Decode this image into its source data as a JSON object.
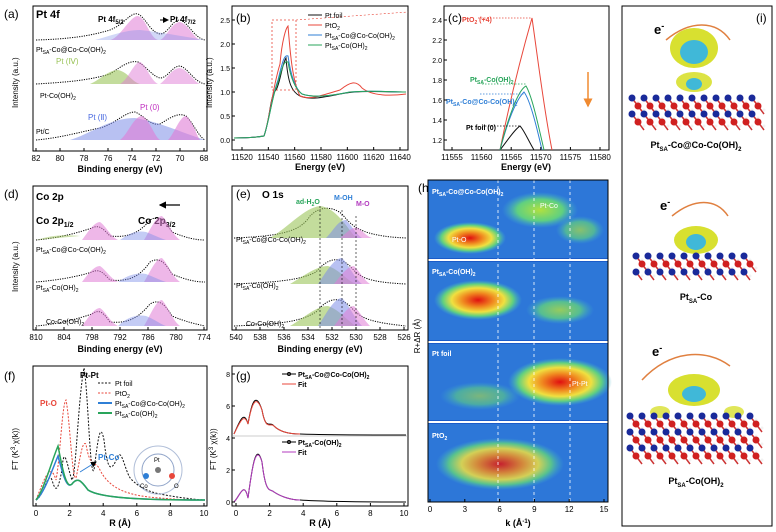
{
  "panels": {
    "a": {
      "letter": "(a)",
      "title": "Pt 4f",
      "peak1": "Pt 4f",
      "peak1_sub": "5/2",
      "peak2": "Pt 4f",
      "peak2_sub": "7/2",
      "curve_top": "Pt",
      "curve_top_sub": "SA",
      "curve_top_rest": "-Co@Co-Co(OH)",
      "curve_top_sub2": "2",
      "curve_mid": "Pt-Co(OH)",
      "curve_mid_sub": "2",
      "curve_bot": "Pt/C",
      "pt4": "Pt (Ⅳ)",
      "pt2": "Pt (Ⅱ)",
      "pt0": "Pt (0)",
      "xlabel": "Binding energy (eV)",
      "ylabel": "Intensity (a.u.)",
      "xticks": [
        "82",
        "80",
        "78",
        "76",
        "74",
        "72",
        "70",
        "68"
      ]
    },
    "b": {
      "letter": "(b)",
      "xlabel": "Energy (eV)",
      "ylabel": "Intensity (a.u.)",
      "xticks": [
        "11520",
        "11540",
        "11560",
        "11580",
        "11600",
        "11620",
        "11640"
      ],
      "yticks": [
        "0.0",
        "0.5",
        "1.0",
        "1.5",
        "2.0",
        "2.5"
      ],
      "legend": [
        "Pt foil",
        "PtO",
        "Pt",
        "Pt"
      ],
      "legend_sub": [
        "",
        "2",
        "SA",
        "SA"
      ],
      "legend_rest": [
        "",
        "",
        "-Co@Co-Co(OH)",
        "-Co(OH)"
      ],
      "legend_sub2": [
        "",
        "",
        "2",
        "2"
      ]
    },
    "c": {
      "letter": "(c)",
      "xlabel": "Energy (eV)",
      "xticks": [
        "11555",
        "11560",
        "11565",
        "11570",
        "11575",
        "11580"
      ],
      "yticks": [
        "1.2",
        "1.4",
        "1.6",
        "1.8",
        "2.0",
        "2.2",
        "2.4"
      ],
      "ptO2": "PtO",
      "ptO2_sub": "2",
      "ptO2_rest": " (+4)",
      "ptco": "Pt",
      "ptco_sub": "SA",
      "ptco_rest": "-Co(OH)",
      "ptco_sub2": "2",
      "ptcoco": "Pt",
      "ptcoco_sub": "SA",
      "ptcoco_rest": "-Co@Co-Co(OH)",
      "ptcoco_sub2": "2",
      "ptfoil": "Pt foil (0)"
    },
    "d": {
      "letter": "(d)",
      "title": "Co 2p",
      "peak1": "Co 2p",
      "peak1_sub": "1/2",
      "peak2": "Co 2p",
      "peak2_sub": "3/2",
      "curve_top": "Pt",
      "curve_top_sub": "SA",
      "curve_top_rest": "-Co@Co-Co(OH)",
      "curve_top_sub2": "2",
      "curve_mid": "Pt",
      "curve_mid_sub": "SA",
      "curve_mid_rest": "-Co(OH)",
      "curve_mid_sub2": "2",
      "curve_bot": "Co-Co(OH)",
      "curve_bot_sub": "2",
      "xlabel": "Binding energy (eV)",
      "ylabel": "Intensity (a.u.)",
      "xticks": [
        "810",
        "804",
        "798",
        "792",
        "786",
        "780",
        "774"
      ]
    },
    "e": {
      "letter": "(e)",
      "title": "O 1s",
      "lab1": "ad-H",
      "lab1_sub": "2",
      "lab1_rest": "O",
      "lab2": "M-OH",
      "lab3": "M-O",
      "curve_top": "Pt",
      "curve_top_sub": "SA",
      "curve_top_rest": "-Co@Co-Co(OH)",
      "curve_top_sub2": "2",
      "curve_mid": "Pt",
      "curve_mid_sub": "SA",
      "curve_mid_rest": "-Co(OH)",
      "curve_mid_sub2": "2",
      "curve_bot": "Co-Co(OH)",
      "curve_bot_sub": "2",
      "xlabel": "Binding energy (eV)",
      "xticks": [
        "540",
        "538",
        "536",
        "534",
        "532",
        "530",
        "528",
        "526"
      ]
    },
    "f": {
      "letter": "(f)",
      "ylabel": "FT (K",
      "ylabel_sup": "3",
      "ylabel_rest": "·χ(k))",
      "xlabel": "R (Å)",
      "ptpt": "Pt-Pt",
      "pto": "Pt-O",
      "ptco": "Pt-Co",
      "legend": [
        "Pt foil",
        "PtO",
        "Pt",
        "Pt"
      ],
      "legend_sub": [
        "",
        "2",
        "SA",
        "SA"
      ],
      "legend_rest": [
        "",
        "",
        "-Co@Co-Co(OH)",
        "-Co(OH)"
      ],
      "legend_sub2": [
        "",
        "",
        "2",
        "2"
      ],
      "xticks": [
        "0",
        "2",
        "4",
        "6",
        "8",
        "10"
      ],
      "inset_pt": "Pt",
      "inset_co": "Co",
      "inset_o": "O"
    },
    "g": {
      "letter": "(g)",
      "ylabel": "FT (K",
      "ylabel_sup": "3",
      "ylabel_rest": " χ(k))",
      "xlabel": "R (Å)",
      "leg_top": "Pt",
      "leg_top_sub": "SA",
      "leg_top_rest": "-Co@Co-Co(OH)",
      "leg_top_sub2": "2",
      "leg_bot": "Pt",
      "leg_bot_sub": "SA",
      "leg_bot_rest": "-Co(OH)",
      "leg_bot_sub2": "2",
      "fit": "Fit",
      "xticks": [
        "0",
        "2",
        "4",
        "6",
        "8",
        "10"
      ],
      "yticks": [
        "0",
        "2",
        "4",
        "6",
        "8"
      ]
    },
    "h": {
      "letter": "(h)",
      "ylabel": "R+ΔR (Å)",
      "xlabel": "k (Å",
      "xlabel_sup": "-1",
      "xlabel_rest": ")",
      "xticks": [
        "0",
        "3",
        "6",
        "9",
        "12",
        "15"
      ],
      "row1": "Pt",
      "row1_sub": "SA",
      "row1_rest": "-Co@Co-Co(OH)",
      "row1_sub2": "2",
      "row2": "Pt",
      "row2_sub": "SA",
      "row2_rest": "-Co(OH)",
      "row2_sub2": "2",
      "row3": "Pt foil",
      "row4": "PtO",
      "row4_sub": "2",
      "pto": "Pt-O",
      "ptco": "Pt-Co",
      "ptpt": "Pt-Pt"
    },
    "i": {
      "letter": "(i)",
      "e": "e",
      "e_sup": "-",
      "cap1": "Pt",
      "cap1_sub": "SA",
      "cap1_rest": "-Co@Co-Co(OH)",
      "cap1_sub2": "2",
      "cap2": "Pt",
      "cap2_sub": "SA",
      "cap2_rest": "-Co",
      "cap3": "Pt",
      "cap3_sub": "SA",
      "cap3_rest": "-Co(OH)",
      "cap3_sub2": "2"
    }
  },
  "colors": {
    "ptfoil": "#111111",
    "pto2": "#e8473b",
    "ptco_co": "#2f7fd6",
    "ptco": "#29a55b",
    "fit": "#b33bbf",
    "pink": "#e07bd6",
    "blue": "#7d8ee8",
    "green": "#9bc45a",
    "yellow": "#e9e36b"
  }
}
